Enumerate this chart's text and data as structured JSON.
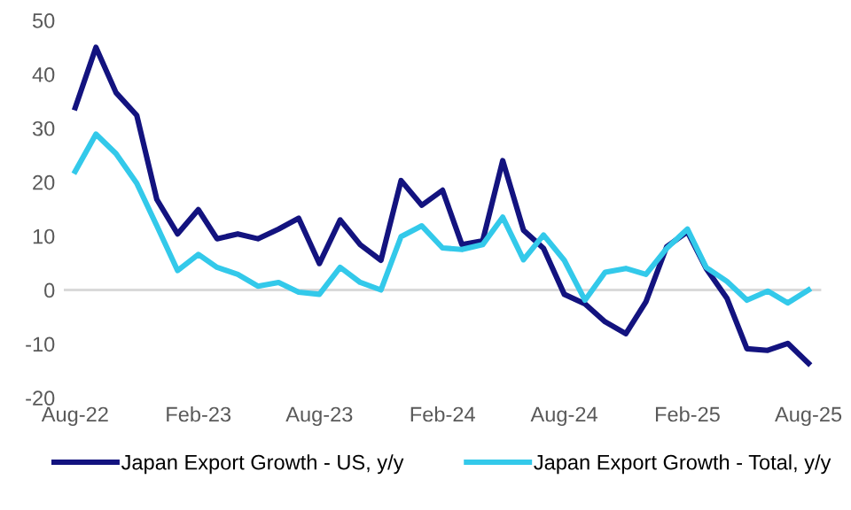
{
  "chart_data": {
    "type": "line",
    "x": [
      "2022-08",
      "2022-09",
      "2022-10",
      "2022-11",
      "2022-12",
      "2023-01",
      "2023-02",
      "2023-03",
      "2023-04",
      "2023-05",
      "2023-06",
      "2023-07",
      "2023-08",
      "2023-09",
      "2023-10",
      "2023-11",
      "2023-12",
      "2024-01",
      "2024-02",
      "2024-03",
      "2024-04",
      "2024-05",
      "2024-06",
      "2024-07",
      "2024-08",
      "2024-09",
      "2024-10",
      "2024-11",
      "2024-12",
      "2025-01",
      "2025-02",
      "2025-03",
      "2025-04",
      "2025-05",
      "2025-06",
      "2025-07",
      "2025-08"
    ],
    "series": [
      {
        "name": "Japan Export Growth - US, y/y",
        "color": "#13137f",
        "values": [
          33.8,
          45,
          36.6,
          32.4,
          16.8,
          10.4,
          14.9,
          9.5,
          10.4,
          9.5,
          11.3,
          13.3,
          4.9,
          13,
          8.4,
          5.5,
          20.3,
          15.7,
          18.5,
          8.4,
          9.1,
          24,
          11.1,
          7.7,
          -0.8,
          -2.6,
          -5.9,
          -8.1,
          -2.2,
          8,
          10.8,
          4,
          -1.5,
          -10.9,
          -11.2,
          -9.9,
          -13.6
        ]
      },
      {
        "name": "Japan Export Growth - Total, y/y",
        "color": "#33c9ea",
        "values": [
          22,
          28.9,
          25.3,
          19.8,
          11.9,
          3.6,
          6.6,
          4.2,
          2.9,
          0.7,
          1.4,
          -0.4,
          -0.8,
          4.2,
          1.4,
          0,
          9.9,
          11.9,
          7.8,
          7.5,
          8.4,
          13.5,
          5.6,
          10.2,
          5.5,
          -1.9,
          3.3,
          4,
          2.9,
          7.7,
          11.3,
          4.2,
          1.6,
          -1.9,
          -0.2,
          -2.4,
          0
        ]
      }
    ],
    "xlim": [
      "2022-07-15",
      "2025-08-20"
    ],
    "xticks": [
      {
        "value": "2022-08",
        "label": "Aug-22"
      },
      {
        "value": "2023-02",
        "label": "Feb-23"
      },
      {
        "value": "2023-08",
        "label": "Aug-23"
      },
      {
        "value": "2024-02",
        "label": "Feb-24"
      },
      {
        "value": "2024-08",
        "label": "Aug-24"
      },
      {
        "value": "2025-02",
        "label": "Feb-25"
      },
      {
        "value": "2025-08",
        "label": "Aug-25"
      }
    ],
    "ylim": [
      -20,
      50
    ],
    "yticks": [
      -20,
      -10,
      0,
      10,
      20,
      30,
      40,
      50
    ],
    "ref_lines": [
      {
        "axis": "y",
        "value": 0,
        "color": "#d9d9d9"
      }
    ],
    "legend": "bottom",
    "grid": false
  }
}
